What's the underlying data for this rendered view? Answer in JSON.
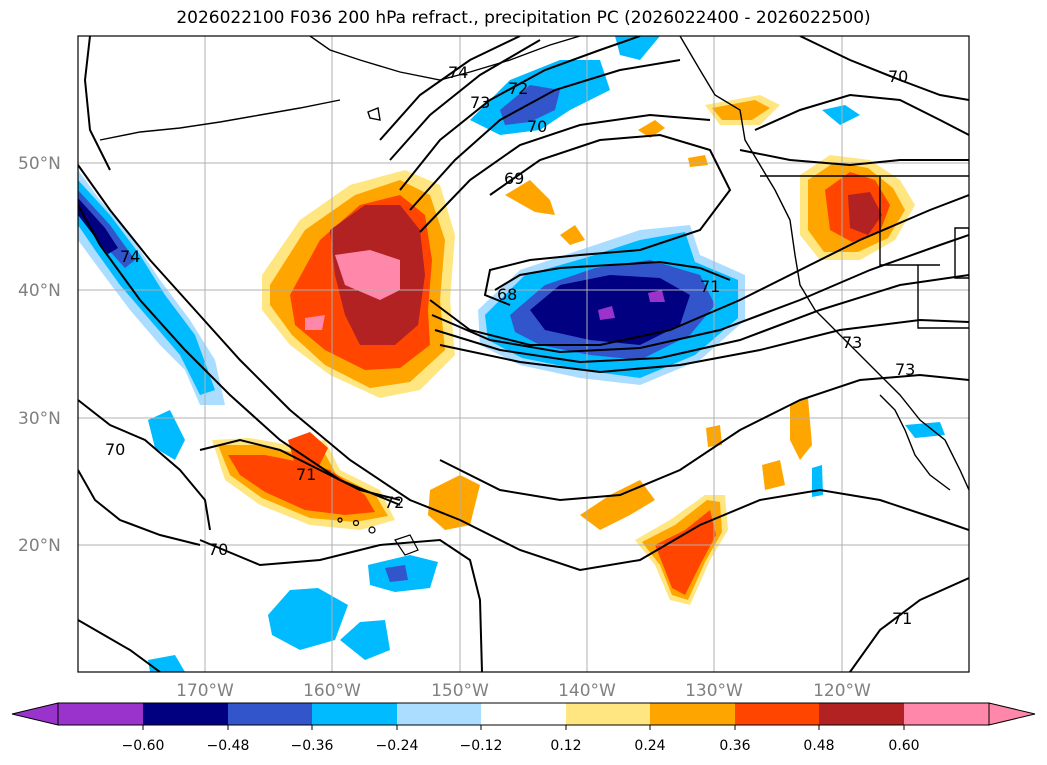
{
  "title": "2026022100 F036 200 hPa refract., precipitation PC (2026022400 - 2026022500)",
  "lat_labels": [
    "50°N",
    "40°N",
    "30°N",
    "20°N"
  ],
  "lon_labels": [
    "170°W",
    "160°W",
    "150°W",
    "140°W",
    "130°W",
    "120°W"
  ],
  "contour_labels": [
    "74",
    "73",
    "72",
    "70",
    "69",
    "68",
    "71",
    "74",
    "73",
    "73",
    "70",
    "71",
    "72",
    "70",
    "70",
    "71"
  ],
  "colorbar": {
    "ticks": [
      "−0.60",
      "−0.48",
      "−0.36",
      "−0.24",
      "−0.12",
      "0.12",
      "0.24",
      "0.36",
      "0.48",
      "0.60"
    ],
    "colors": [
      "#9933cc",
      "#000080",
      "#3355cc",
      "#00bbff",
      "#aaddff",
      "#ffffff",
      "#ffe680",
      "#ffa500",
      "#ff4500",
      "#b22222",
      "#ff88aa"
    ]
  },
  "colors": {
    "pos_light": "#ffe680",
    "pos_orange": "#ffa500",
    "pos_redorange": "#ff4500",
    "pos_dark": "#b22222",
    "pos_pink": "#ff88aa",
    "neg_light": "#aaddff",
    "neg_cyan": "#00bbff",
    "neg_blue": "#3355cc",
    "neg_navy": "#000080",
    "neg_purple": "#9933cc"
  }
}
